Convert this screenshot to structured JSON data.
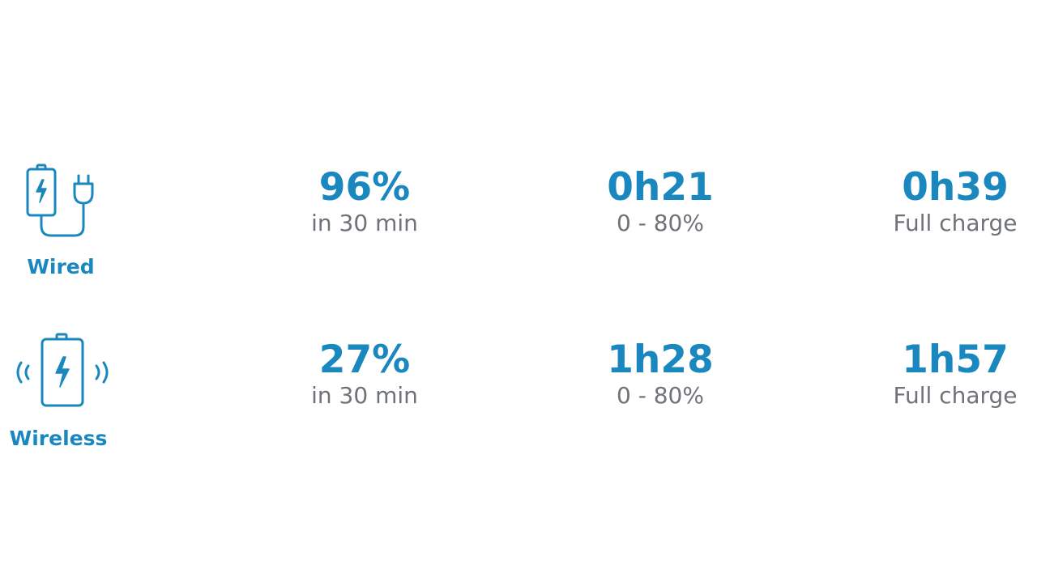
{
  "accent_color": "#1a88bf",
  "caption_color": "#6f7379",
  "rows": [
    {
      "type_label": "Wired",
      "icon": "battery-plug-icon",
      "stats": [
        {
          "value": "96%",
          "caption": "in 30 min"
        },
        {
          "value": "0h21",
          "caption": "0 - 80%"
        },
        {
          "value": "0h39",
          "caption": "Full charge"
        }
      ]
    },
    {
      "type_label": "Wireless",
      "icon": "battery-wireless-icon",
      "stats": [
        {
          "value": "27%",
          "caption": "in 30 min"
        },
        {
          "value": "1h28",
          "caption": "0 - 80%"
        },
        {
          "value": "1h57",
          "caption": "Full charge"
        }
      ]
    }
  ]
}
